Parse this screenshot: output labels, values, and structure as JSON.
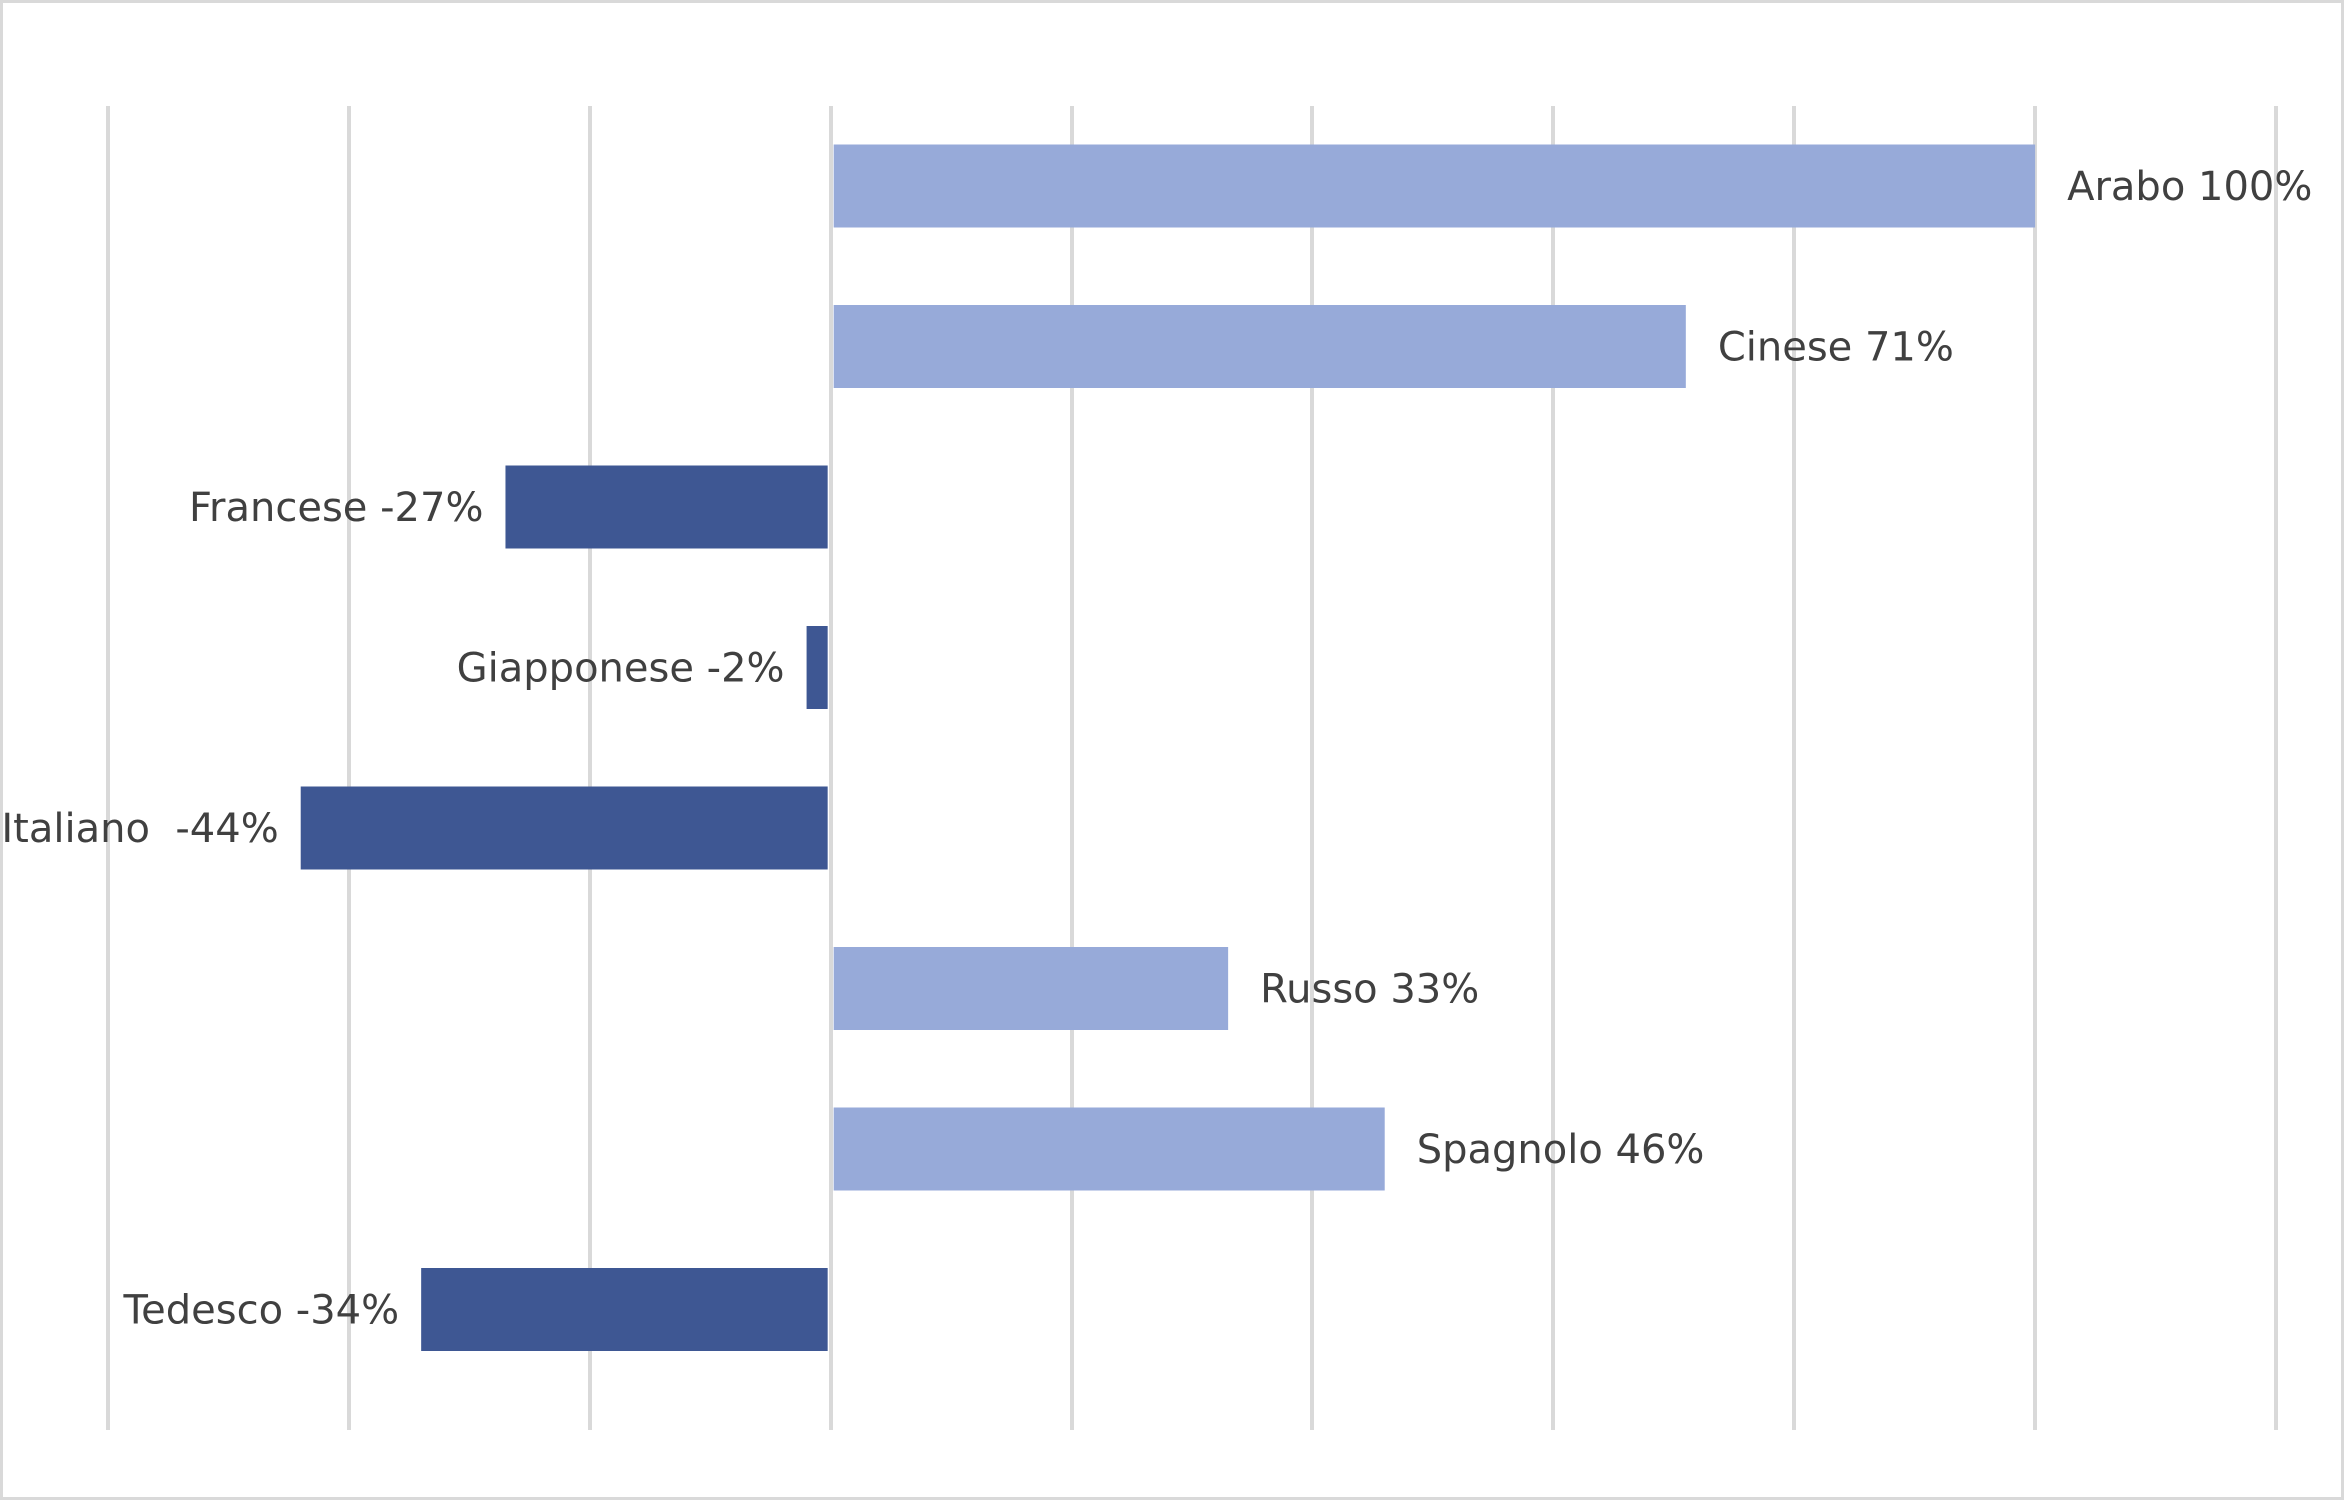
{
  "chart_data": {
    "type": "bar",
    "orientation": "horizontal",
    "title": "",
    "xlabel": "",
    "ylabel": "",
    "xlim": [
      -0.6,
      1.2
    ],
    "grid": true,
    "legend": "none",
    "categories": [
      "Arabo",
      "Cinese",
      "Francese",
      "Giapponese",
      "Italiano",
      "Russo",
      "Spagnolo",
      "Tedesco"
    ],
    "values": [
      1.0,
      0.71,
      -0.27,
      -0.02,
      -0.44,
      0.33,
      0.46,
      -0.34
    ],
    "labels": [
      "Arabo 100%",
      "Cinese 71%",
      "Francese -27%",
      "Giapponese -2%",
      "Italiano  -44%",
      "Russo 33%",
      "Spagnolo 46%",
      "Tedesco -34%"
    ],
    "colors": {
      "positive": "#97aad9",
      "negative": "#3e5793",
      "gridline": "#d9d9d9",
      "label": "#404040"
    }
  }
}
